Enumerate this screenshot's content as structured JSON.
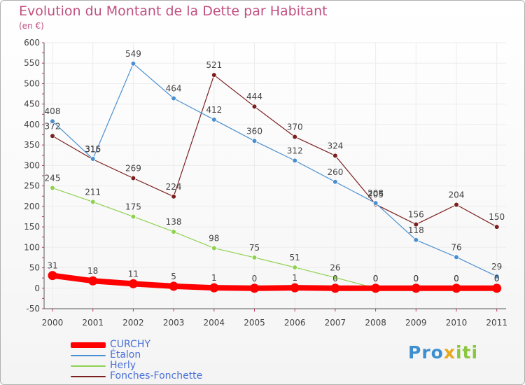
{
  "header": {
    "title": "Evolution du Montant de la Dette par Habitant",
    "subtitle": "(en €)"
  },
  "logo": {
    "part1": "Pro",
    "part2": "x",
    "part3": "iti"
  },
  "colors": {
    "title": "#c05080",
    "grid": "#ececec",
    "axis": "#555555",
    "tick_marks": "#cc3366"
  },
  "chart_data": {
    "type": "line",
    "title": "Evolution du Montant de la Dette par Habitant",
    "subtitle": "(en €)",
    "xlabel": "",
    "ylabel": "",
    "x": [
      "2000",
      "2001",
      "2002",
      "2003",
      "2004",
      "2005",
      "2006",
      "2007",
      "2008",
      "2009",
      "2010",
      "2011"
    ],
    "ylim": [
      -50,
      600
    ],
    "yticks": [
      -50,
      0,
      50,
      100,
      150,
      200,
      250,
      300,
      350,
      400,
      450,
      500,
      550,
      600
    ],
    "grid": true,
    "legend_position": "bottom-left",
    "series": [
      {
        "name": "Fonches-Fonchette",
        "color": "#7a2020",
        "values": [
          372,
          315,
          269,
          224,
          521,
          444,
          370,
          324,
          205,
          156,
          204,
          150
        ],
        "labels": [
          "372",
          "315",
          "269",
          "224",
          "521",
          "444",
          "370",
          "324",
          "205",
          "156",
          "204",
          "150"
        ]
      },
      {
        "name": "Etalon",
        "color": "#4a8fd0",
        "values": [
          408,
          316,
          549,
          464,
          412,
          360,
          312,
          260,
          208,
          118,
          76,
          29
        ],
        "labels": [
          "408",
          "316",
          "549",
          "464",
          "412",
          "360",
          "312",
          "260",
          "208",
          "118",
          "76",
          "29"
        ]
      },
      {
        "name": "Herly",
        "color": "#8fd14f",
        "values": [
          245,
          211,
          175,
          138,
          98,
          75,
          51,
          26,
          0,
          0,
          0,
          0
        ],
        "labels": [
          "245",
          "211",
          "175",
          "138",
          "98",
          "75",
          "51",
          "26",
          "0",
          "0",
          "0",
          "0"
        ]
      },
      {
        "name": "CURCHY",
        "color": "#ff0000",
        "values": [
          31,
          18,
          11,
          5,
          1,
          0,
          1,
          0,
          0,
          0,
          0,
          0
        ],
        "labels": [
          "31",
          "18",
          "11",
          "5",
          "1",
          "0",
          "1",
          "0",
          "0",
          "0",
          "0",
          "0"
        ]
      }
    ]
  },
  "legend": {
    "items": [
      {
        "label": "CURCHY",
        "color": "#ff0000"
      },
      {
        "label": "Étalon",
        "color": "#4a8fd0"
      },
      {
        "label": "Herly",
        "color": "#8fd14f"
      },
      {
        "label": "Fonches-Fonchette",
        "color": "#7a2020"
      }
    ]
  }
}
